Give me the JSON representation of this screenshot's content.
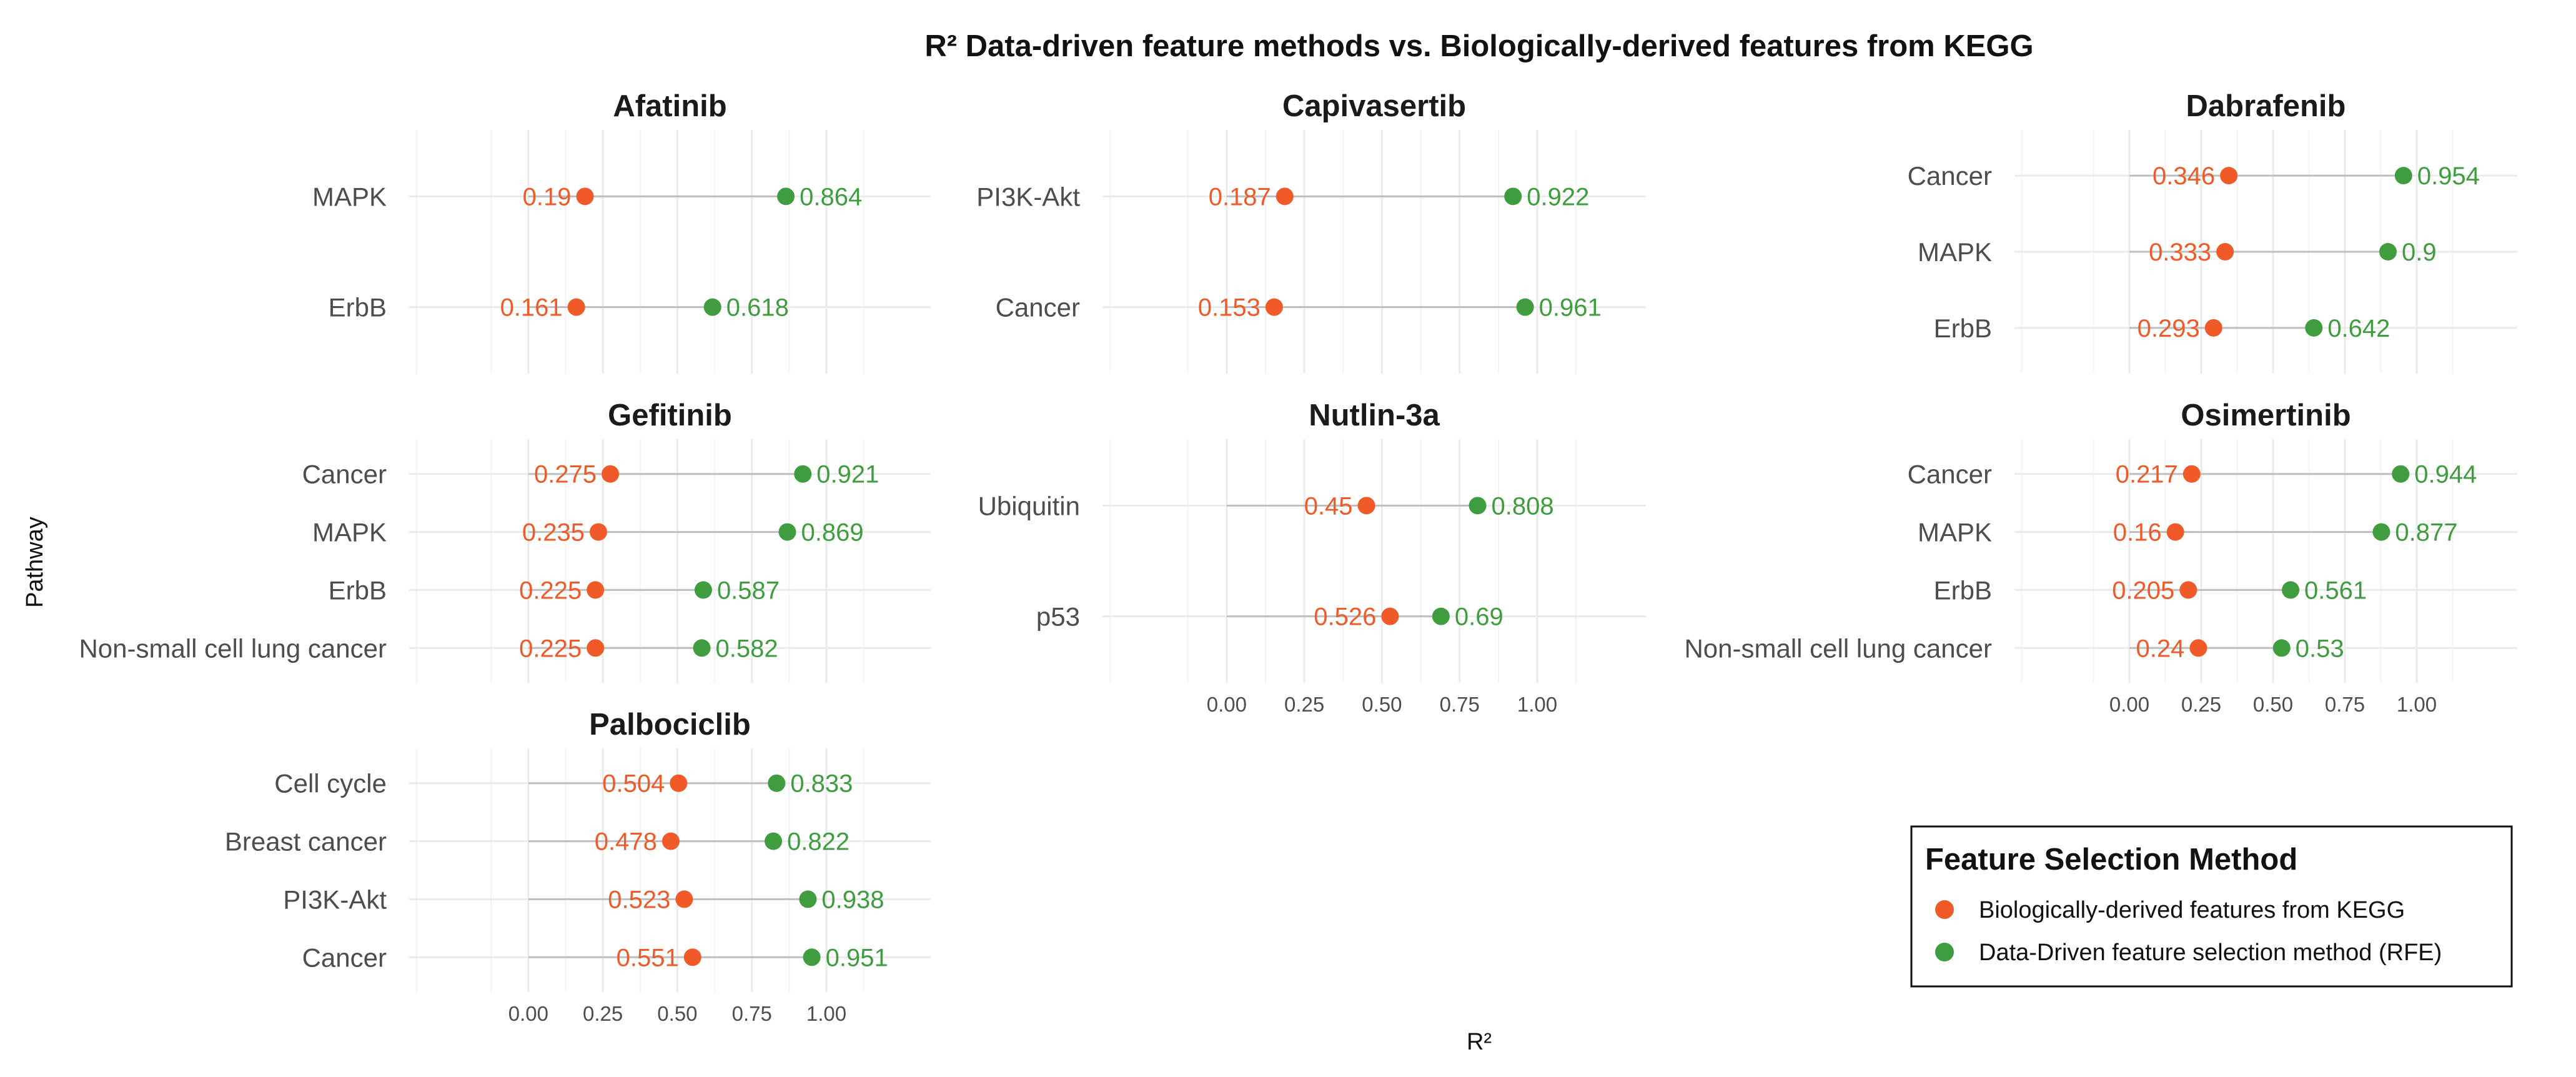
{
  "colors": {
    "kegg": "#f05a28",
    "rfe": "#3f9c3f",
    "grid": "#ebebeb",
    "segment": "#bfbfbf"
  },
  "chart_data": {
    "type": "dot-dumbbell",
    "title": "R² Data-driven feature methods vs. Biologically-derived features from KEGG",
    "xlabel": "R²",
    "ylabel": "Pathway",
    "xlim": [
      -0.4,
      1.35
    ],
    "x_ticks": [
      "0.00",
      "0.25",
      "0.50",
      "0.75",
      "1.00"
    ],
    "legend": {
      "title": "Feature Selection Method",
      "position": "bottom-right",
      "entries": [
        {
          "key": "kegg",
          "label": "Biologically-derived features from KEGG"
        },
        {
          "key": "rfe",
          "label": "Data-Driven feature selection method (RFE)"
        }
      ]
    },
    "facets": [
      {
        "drug": "Afatinib",
        "rows": [
          {
            "pathway": "MAPK",
            "kegg": 0.19,
            "kegg_label": "0.19",
            "rfe": 0.864,
            "rfe_label": "0.864"
          },
          {
            "pathway": "ErbB",
            "kegg": 0.161,
            "kegg_label": "0.161",
            "rfe": 0.618,
            "rfe_label": "0.618"
          }
        ]
      },
      {
        "drug": "Capivasertib",
        "rows": [
          {
            "pathway": "PI3K-Akt",
            "kegg": 0.187,
            "kegg_label": "0.187",
            "rfe": 0.922,
            "rfe_label": "0.922"
          },
          {
            "pathway": "Cancer",
            "kegg": 0.153,
            "kegg_label": "0.153",
            "rfe": 0.961,
            "rfe_label": "0.961"
          }
        ]
      },
      {
        "drug": "Dabrafenib",
        "rows": [
          {
            "pathway": "Cancer",
            "kegg": 0.346,
            "kegg_label": "0.346",
            "rfe": 0.954,
            "rfe_label": "0.954"
          },
          {
            "pathway": "MAPK",
            "kegg": 0.333,
            "kegg_label": "0.333",
            "rfe": 0.9,
            "rfe_label": "0.9"
          },
          {
            "pathway": "ErbB",
            "kegg": 0.293,
            "kegg_label": "0.293",
            "rfe": 0.642,
            "rfe_label": "0.642"
          }
        ]
      },
      {
        "drug": "Gefitinib",
        "rows": [
          {
            "pathway": "Cancer",
            "kegg": 0.275,
            "kegg_label": "0.275",
            "rfe": 0.921,
            "rfe_label": "0.921"
          },
          {
            "pathway": "MAPK",
            "kegg": 0.235,
            "kegg_label": "0.235",
            "rfe": 0.869,
            "rfe_label": "0.869"
          },
          {
            "pathway": "ErbB",
            "kegg": 0.225,
            "kegg_label": "0.225",
            "rfe": 0.587,
            "rfe_label": "0.587"
          },
          {
            "pathway": "Non-small cell lung cancer",
            "kegg": 0.225,
            "kegg_label": "0.225",
            "rfe": 0.582,
            "rfe_label": "0.582"
          }
        ]
      },
      {
        "drug": "Nutlin-3a",
        "rows": [
          {
            "pathway": "Ubiquitin",
            "kegg": 0.45,
            "kegg_label": "0.45",
            "rfe": 0.808,
            "rfe_label": "0.808"
          },
          {
            "pathway": "p53",
            "kegg": 0.526,
            "kegg_label": "0.526",
            "rfe": 0.69,
            "rfe_label": "0.69"
          }
        ]
      },
      {
        "drug": "Osimertinib",
        "rows": [
          {
            "pathway": "Cancer",
            "kegg": 0.217,
            "kegg_label": "0.217",
            "rfe": 0.944,
            "rfe_label": "0.944"
          },
          {
            "pathway": "MAPK",
            "kegg": 0.16,
            "kegg_label": "0.16",
            "rfe": 0.877,
            "rfe_label": "0.877"
          },
          {
            "pathway": "ErbB",
            "kegg": 0.205,
            "kegg_label": "0.205",
            "rfe": 0.561,
            "rfe_label": "0.561"
          },
          {
            "pathway": "Non-small cell lung cancer",
            "kegg": 0.24,
            "kegg_label": "0.24",
            "rfe": 0.53,
            "rfe_label": "0.53"
          }
        ]
      },
      {
        "drug": "Palbociclib",
        "rows": [
          {
            "pathway": "Cell cycle",
            "kegg": 0.504,
            "kegg_label": "0.504",
            "rfe": 0.833,
            "rfe_label": "0.833"
          },
          {
            "pathway": "Breast cancer",
            "kegg": 0.478,
            "kegg_label": "0.478",
            "rfe": 0.822,
            "rfe_label": "0.822"
          },
          {
            "pathway": "PI3K-Akt",
            "kegg": 0.523,
            "kegg_label": "0.523",
            "rfe": 0.938,
            "rfe_label": "0.938"
          },
          {
            "pathway": "Cancer",
            "kegg": 0.551,
            "kegg_label": "0.551",
            "rfe": 0.951,
            "rfe_label": "0.951"
          }
        ]
      }
    ]
  }
}
